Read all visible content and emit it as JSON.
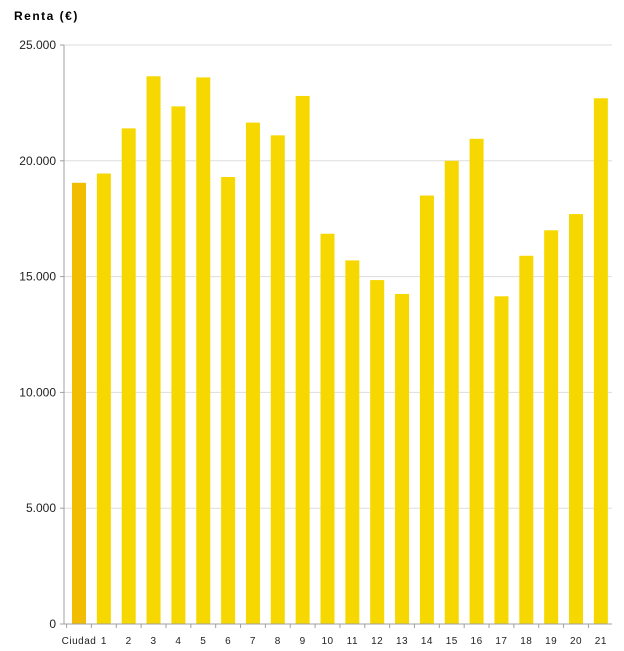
{
  "chart_data": {
    "type": "bar",
    "title": "Renta (€)",
    "xlabel": "",
    "ylabel": "",
    "categories": [
      "Ciudad",
      "1",
      "2",
      "3",
      "4",
      "5",
      "6",
      "7",
      "8",
      "9",
      "10",
      "11",
      "12",
      "13",
      "14",
      "15",
      "16",
      "17",
      "18",
      "19",
      "20",
      "21"
    ],
    "values": [
      19050,
      19450,
      21400,
      23650,
      22350,
      23600,
      19300,
      21650,
      21100,
      22800,
      16850,
      15700,
      14850,
      14250,
      18500,
      20000,
      20950,
      14150,
      15900,
      17000,
      17700,
      22700
    ],
    "ylim": [
      0,
      25000
    ],
    "yticks": [
      0,
      5000,
      10000,
      15000,
      20000,
      25000
    ],
    "ytick_labels": [
      "0",
      "5.000",
      "10.000",
      "15.000",
      "20.000",
      "25.000"
    ],
    "grid": true,
    "colors": {
      "highlight": "#F2BC00",
      "bar": "#F6D800",
      "grid": "#DDDDDD",
      "axis": "#A0A0A0"
    }
  }
}
